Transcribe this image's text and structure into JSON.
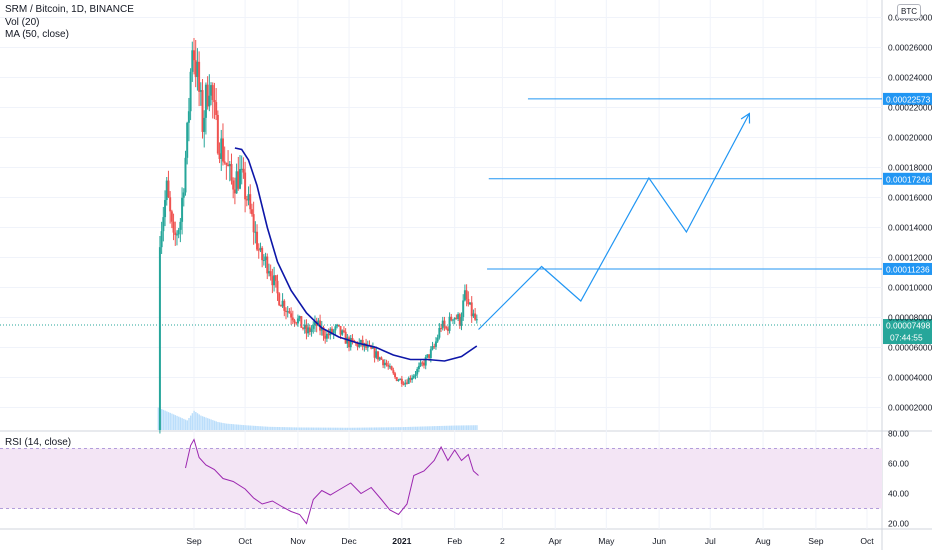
{
  "legend": {
    "symbol": "SRM / Bitcoin, 1D, BINANCE",
    "volume": "Vol (20)",
    "ma": "MA (50, close)",
    "rsi": "RSI (14, close)"
  },
  "currency_badge": "BTC",
  "chart_data": {
    "type": "candlestick",
    "price_axis": {
      "ticks": [
        "0.00002000",
        "0.00004000",
        "0.00006000",
        "0.00008000",
        "0.00010000",
        "0.00012000",
        "0.00014000",
        "0.00016000",
        "0.00018000",
        "0.00020000",
        "0.00022000",
        "0.00024000",
        "0.00026000",
        "0.00028000"
      ],
      "range": [
        5e-06,
        0.000283
      ]
    },
    "rsi_axis": {
      "ticks": [
        "20.00",
        "40.00",
        "60.00",
        "80.00"
      ],
      "range": [
        17,
        81
      ],
      "bands": [
        30,
        70
      ]
    },
    "time_axis": {
      "labels": [
        {
          "label": "Sep",
          "date": "2020-09-01"
        },
        {
          "label": "Oct",
          "date": "2020-10-01"
        },
        {
          "label": "Nov",
          "date": "2020-11-01"
        },
        {
          "label": "Dec",
          "date": "2020-12-01"
        },
        {
          "label": "2021",
          "date": "2021-01-01"
        },
        {
          "label": "Feb",
          "date": "2021-02-01"
        },
        {
          "label": "2",
          "date": "2021-03-01"
        },
        {
          "label": "Apr",
          "date": "2021-04-01"
        },
        {
          "label": "May",
          "date": "2021-05-01"
        },
        {
          "label": "Jun",
          "date": "2021-06-01"
        },
        {
          "label": "Jul",
          "date": "2021-07-01"
        },
        {
          "label": "Aug",
          "date": "2021-08-01"
        },
        {
          "label": "Sep",
          "date": "2021-09-01"
        },
        {
          "label": "Oct",
          "date": "2021-10-01"
        }
      ]
    },
    "price_path": [
      {
        "date": "2020-08-11",
        "value": 5e-06
      },
      {
        "date": "2020-08-12",
        "value": 0.000135
      },
      {
        "date": "2020-08-16",
        "value": 0.000165
      },
      {
        "date": "2020-08-20",
        "value": 0.00013
      },
      {
        "date": "2020-08-24",
        "value": 0.000145
      },
      {
        "date": "2020-08-28",
        "value": 0.0002
      },
      {
        "date": "2020-08-31",
        "value": 0.000265
      },
      {
        "date": "2020-09-03",
        "value": 0.00024
      },
      {
        "date": "2020-09-06",
        "value": 0.00021
      },
      {
        "date": "2020-09-10",
        "value": 0.00024
      },
      {
        "date": "2020-09-14",
        "value": 0.000205
      },
      {
        "date": "2020-09-18",
        "value": 0.00019
      },
      {
        "date": "2020-09-23",
        "value": 0.00017
      },
      {
        "date": "2020-09-28",
        "value": 0.000175
      },
      {
        "date": "2020-10-02",
        "value": 0.00016
      },
      {
        "date": "2020-10-06",
        "value": 0.00014
      },
      {
        "date": "2020-10-10",
        "value": 0.00012
      },
      {
        "date": "2020-10-15",
        "value": 0.000115
      },
      {
        "date": "2020-10-20",
        "value": 9.5e-05
      },
      {
        "date": "2020-10-26",
        "value": 8.5e-05
      },
      {
        "date": "2020-11-01",
        "value": 7.8e-05
      },
      {
        "date": "2020-11-06",
        "value": 7e-05
      },
      {
        "date": "2020-11-12",
        "value": 7.5e-05
      },
      {
        "date": "2020-11-18",
        "value": 6.8e-05
      },
      {
        "date": "2020-11-24",
        "value": 7.2e-05
      },
      {
        "date": "2020-12-01",
        "value": 6.3e-05
      },
      {
        "date": "2020-12-08",
        "value": 6.2e-05
      },
      {
        "date": "2020-12-15",
        "value": 5.7e-05
      },
      {
        "date": "2020-12-22",
        "value": 5e-05
      },
      {
        "date": "2020-12-28",
        "value": 4e-05
      },
      {
        "date": "2021-01-03",
        "value": 3.7e-05
      },
      {
        "date": "2021-01-08",
        "value": 4.2e-05
      },
      {
        "date": "2021-01-14",
        "value": 5e-05
      },
      {
        "date": "2021-01-20",
        "value": 6e-05
      },
      {
        "date": "2021-01-24",
        "value": 7.5e-05
      },
      {
        "date": "2021-01-27",
        "value": 7.2e-05
      },
      {
        "date": "2021-01-31",
        "value": 8.2e-05
      },
      {
        "date": "2021-02-04",
        "value": 7.8e-05
      },
      {
        "date": "2021-02-07",
        "value": 9.4e-05
      },
      {
        "date": "2021-02-10",
        "value": 8.5e-05
      },
      {
        "date": "2021-02-14",
        "value": 7.6e-05
      }
    ],
    "volume_bars": [
      {
        "date": "2020-08-11",
        "value": 14
      },
      {
        "date": "2020-08-28",
        "value": 6
      },
      {
        "date": "2020-09-01",
        "value": 12
      },
      {
        "date": "2020-09-05",
        "value": 9
      },
      {
        "date": "2020-09-10",
        "value": 7
      },
      {
        "date": "2020-09-15",
        "value": 5
      },
      {
        "date": "2020-09-20",
        "value": 4
      },
      {
        "date": "2020-10-01",
        "value": 3
      },
      {
        "date": "2020-10-15",
        "value": 2
      },
      {
        "date": "2020-11-01",
        "value": 1.6
      },
      {
        "date": "2020-12-01",
        "value": 1.4
      },
      {
        "date": "2021-01-01",
        "value": 1.8
      },
      {
        "date": "2021-02-01",
        "value": 2.8
      },
      {
        "date": "2021-02-14",
        "value": 3
      }
    ],
    "ma_line": [
      {
        "date": "2020-09-25",
        "value": 0.000193
      },
      {
        "date": "2020-09-29",
        "value": 0.000192
      },
      {
        "date": "2020-10-03",
        "value": 0.000185
      },
      {
        "date": "2020-10-08",
        "value": 0.000168
      },
      {
        "date": "2020-10-14",
        "value": 0.00014
      },
      {
        "date": "2020-10-20",
        "value": 0.000117
      },
      {
        "date": "2020-10-28",
        "value": 9.8e-05
      },
      {
        "date": "2020-11-06",
        "value": 8.3e-05
      },
      {
        "date": "2020-11-15",
        "value": 7.3e-05
      },
      {
        "date": "2020-11-25",
        "value": 6.7e-05
      },
      {
        "date": "2020-12-06",
        "value": 6.3e-05
      },
      {
        "date": "2020-12-17",
        "value": 6e-05
      },
      {
        "date": "2020-12-27",
        "value": 5.5e-05
      },
      {
        "date": "2021-01-06",
        "value": 5.2e-05
      },
      {
        "date": "2021-01-16",
        "value": 5.2e-05
      },
      {
        "date": "2021-01-26",
        "value": 5.1e-05
      },
      {
        "date": "2021-02-05",
        "value": 5.4e-05
      },
      {
        "date": "2021-02-14",
        "value": 6.1e-05
      }
    ],
    "rsi_line": [
      {
        "date": "2020-08-27",
        "value": 57
      },
      {
        "date": "2020-08-30",
        "value": 72
      },
      {
        "date": "2020-09-01",
        "value": 76
      },
      {
        "date": "2020-09-04",
        "value": 64
      },
      {
        "date": "2020-09-08",
        "value": 59
      },
      {
        "date": "2020-09-13",
        "value": 56
      },
      {
        "date": "2020-09-18",
        "value": 50
      },
      {
        "date": "2020-09-24",
        "value": 48
      },
      {
        "date": "2020-10-01",
        "value": 43
      },
      {
        "date": "2020-10-06",
        "value": 37
      },
      {
        "date": "2020-10-11",
        "value": 33
      },
      {
        "date": "2020-10-17",
        "value": 35
      },
      {
        "date": "2020-10-23",
        "value": 31
      },
      {
        "date": "2020-10-28",
        "value": 28
      },
      {
        "date": "2020-11-02",
        "value": 26
      },
      {
        "date": "2020-11-06",
        "value": 20
      },
      {
        "date": "2020-11-10",
        "value": 36
      },
      {
        "date": "2020-11-15",
        "value": 42
      },
      {
        "date": "2020-11-20",
        "value": 39
      },
      {
        "date": "2020-11-26",
        "value": 43
      },
      {
        "date": "2020-12-02",
        "value": 47
      },
      {
        "date": "2020-12-08",
        "value": 40
      },
      {
        "date": "2020-12-14",
        "value": 44
      },
      {
        "date": "2020-12-20",
        "value": 36
      },
      {
        "date": "2020-12-25",
        "value": 29
      },
      {
        "date": "2020-12-30",
        "value": 26
      },
      {
        "date": "2021-01-04",
        "value": 33
      },
      {
        "date": "2021-01-08",
        "value": 52
      },
      {
        "date": "2021-01-14",
        "value": 55
      },
      {
        "date": "2021-01-20",
        "value": 62
      },
      {
        "date": "2021-01-24",
        "value": 71
      },
      {
        "date": "2021-01-28",
        "value": 62
      },
      {
        "date": "2021-02-01",
        "value": 69
      },
      {
        "date": "2021-02-05",
        "value": 62
      },
      {
        "date": "2021-02-09",
        "value": 66
      },
      {
        "date": "2021-02-12",
        "value": 55
      },
      {
        "date": "2021-02-15",
        "value": 52
      }
    ],
    "projection": [
      {
        "date": "2021-02-15",
        "value": 7.2e-05
      },
      {
        "date": "2021-03-24",
        "value": 0.000114
      },
      {
        "date": "2021-04-16",
        "value": 9.1e-05
      },
      {
        "date": "2021-05-26",
        "value": 0.000173
      },
      {
        "date": "2021-06-17",
        "value": 0.000137
      },
      {
        "date": "2021-07-24",
        "value": 0.000216
      }
    ],
    "levels": [
      {
        "label": "0.00011236",
        "value": 0.00011236,
        "from": "2021-02-20"
      },
      {
        "label": "0.00017246",
        "value": 0.00017246,
        "from": "2021-02-21"
      },
      {
        "label": "0.00022573",
        "value": 0.00022573,
        "from": "2021-03-16"
      }
    ],
    "current_price": {
      "label": "0.00007498",
      "value": 7.498e-05,
      "countdown": "07:44:55"
    }
  },
  "colors": {
    "up": "#26a69a",
    "down": "#ef5350",
    "volume": "#bbdefb",
    "ma": "#0d16a8",
    "rsi": "#9c27b0",
    "rsi_band": "#f3e5f5",
    "projection": "#2196f3",
    "level_label": "#2196f3",
    "current": "#26a69a",
    "grid": "#f0f3fa",
    "axis_text": "#131722"
  }
}
